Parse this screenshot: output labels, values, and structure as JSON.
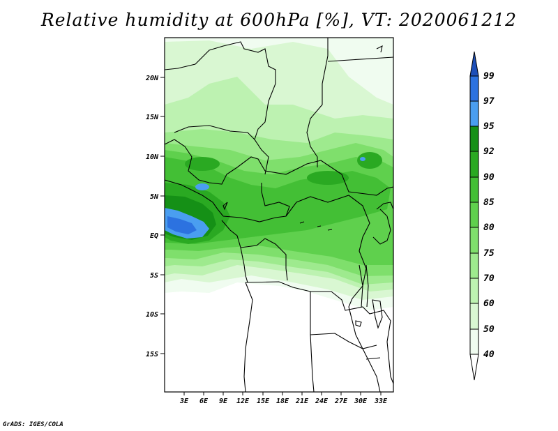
{
  "title": "Relative humidity at 600hPa [%], VT: 2020061212",
  "credit": "GrADS: IGES/COLA",
  "colors": {
    "c40": "#f0fcf0",
    "c50": "#d9f7d2",
    "c60": "#bdf2b1",
    "c70": "#9eea8e",
    "c75": "#7fdf6c",
    "c80": "#5fd04d",
    "c85": "#43bf35",
    "c90": "#2aa922",
    "c92": "#159016",
    "c95": "#4a9ef0",
    "c97": "#2c72e0",
    "c99": "#1d4fb8"
  },
  "map": {
    "lat_labels": [
      "20N",
      "15N",
      "10N",
      "5N",
      "EQ",
      "5S",
      "10S",
      "15S"
    ],
    "lon_labels": [
      "3E",
      "6E",
      "9E",
      "12E",
      "15E",
      "18E",
      "21E",
      "24E",
      "27E",
      "30E",
      "33E"
    ]
  },
  "colorbar": {
    "labels": [
      "99",
      "97",
      "95",
      "92",
      "90",
      "85",
      "80",
      "75",
      "70",
      "60",
      "50",
      "40"
    ]
  }
}
